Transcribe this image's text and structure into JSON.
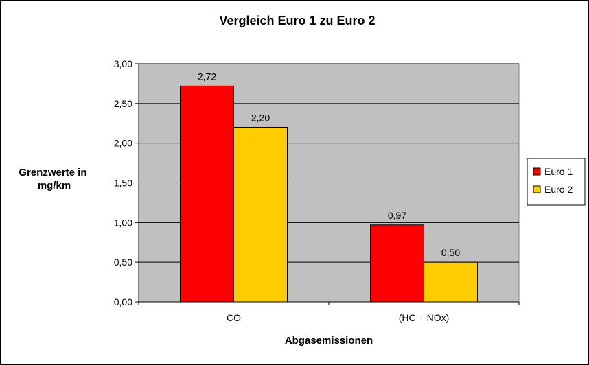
{
  "colors": {
    "plot_background": "#c0c0c0",
    "euro1": "#ff0000",
    "euro2": "#ffcc00",
    "grid": "#000000"
  },
  "chart_data": {
    "type": "bar",
    "title": "Vergleich Euro 1 zu Euro 2",
    "ylabel": "Grenzwerte in mg/km",
    "ylabel_lines": [
      "Grenzwerte in",
      "mg/km"
    ],
    "xlabel": "Abgasemissionen",
    "categories": [
      "CO",
      "(HC + NOx)"
    ],
    "ylim": [
      0,
      3
    ],
    "yticks": [
      0,
      0.5,
      1,
      1.5,
      2,
      2.5,
      3
    ],
    "ytick_labels": [
      "0,00",
      "0,50",
      "1,00",
      "1,50",
      "2,00",
      "2,50",
      "3,00"
    ],
    "grid": true,
    "legend_position": "right",
    "series": [
      {
        "name": "Euro 1",
        "values": [
          2.72,
          0.97
        ],
        "labels": [
          "2,72",
          "0,97"
        ]
      },
      {
        "name": "Euro 2",
        "values": [
          2.2,
          0.5
        ],
        "labels": [
          "2,20",
          "0,50"
        ]
      }
    ]
  }
}
